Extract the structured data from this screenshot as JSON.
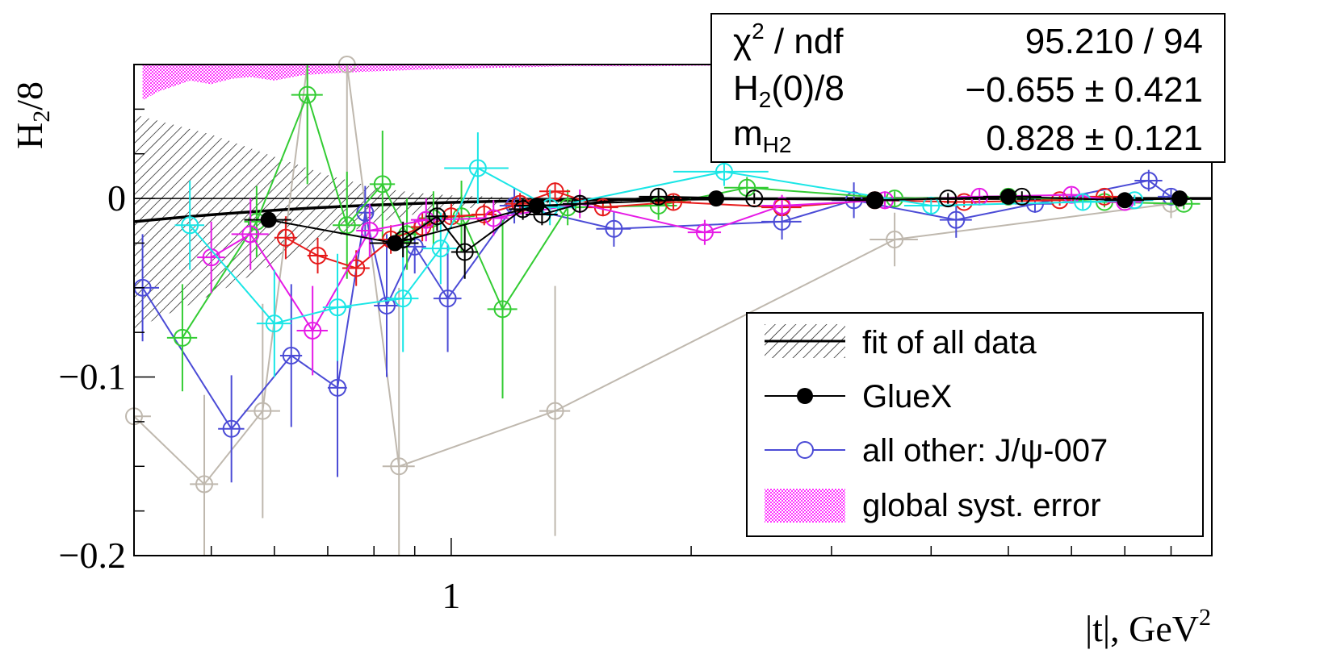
{
  "chart_data": {
    "type": "scatter",
    "x_scale": "log",
    "xlim": [
      0.4,
      9.0
    ],
    "ylim": [
      -0.2,
      0.075
    ],
    "ylabel_main": "H",
    "ylabel_sub": "2",
    "ylabel_rest": "/8",
    "xlabel_main": "|t|, GeV",
    "xlabel_sup": "2",
    "x_ticks": [
      {
        "value": 1,
        "label": "1"
      }
    ],
    "y_ticks": [
      {
        "value": 0,
        "label": "0"
      },
      {
        "value": -0.1,
        "label": "−0.1"
      },
      {
        "value": -0.2,
        "label": "−0.2"
      }
    ],
    "stats": {
      "chi_label": "χ",
      "chi_sup": "2",
      "chi_rest": " / ndf",
      "chi_value": "95.210 / 94",
      "h2_label": "H",
      "h2_sub": "2",
      "h2_rest": "(0)/8",
      "h2_value": "−0.655 ± 0.421",
      "m_label": "m",
      "m_sub": "H2",
      "m_value": "0.828 ± 0.121"
    },
    "legend": {
      "fit": "fit of all data",
      "gluex": "GlueX",
      "other": "all other: J/ψ-007",
      "syst": "global syst. error"
    },
    "colors": {
      "gluex": "#000000",
      "blue": "#4b4bd6",
      "green": "#33cc33",
      "red": "#e61a1a",
      "magenta": "#e61ae6",
      "cyan": "#1ae6e6",
      "gray": "#bfb8ae",
      "black_open": "#000000",
      "syst": "#ff33ff"
    },
    "fit": {
      "h2_0": -0.655,
      "m": 0.828,
      "x": [
        0.4,
        0.5,
        0.6,
        0.7,
        0.8,
        0.9,
        1.0,
        1.2,
        1.5,
        2.0,
        3.0,
        5.0,
        9.0
      ],
      "band_halfwidth": [
        0.06,
        0.045,
        0.03,
        0.018,
        0.01,
        0.006,
        0.004,
        0.002,
        0.001,
        0.0005,
        0.0002,
        0.0001,
        0.0
      ]
    },
    "series": [
      {
        "name": "GlueX",
        "filled": true,
        "color_key": "gluex",
        "x": [
          0.59,
          0.85,
          1.28,
          2.15,
          3.4,
          5.0,
          7.0,
          8.2,
          10.3
        ],
        "y": [
          -0.012,
          -0.025,
          -0.004,
          0.0,
          -0.001,
          0.001,
          -0.001,
          0.0,
          0.0
        ],
        "yerr": [
          0.004,
          0.004,
          0.003,
          0.002,
          0.002,
          0.002,
          0.002,
          0.002,
          0.002
        ],
        "xerr": [
          0.04,
          0.06,
          0.08,
          0.15,
          0.25,
          0.35,
          0.4,
          0.4,
          0.7
        ]
      },
      {
        "color_key": "blue",
        "x": [
          0.41,
          0.53,
          0.63,
          0.72,
          0.78,
          0.83,
          0.9,
          0.99,
          1.2,
          1.6,
          2.6,
          3.2,
          4.3,
          5.4,
          7.5,
          8.0
        ],
        "y": [
          -0.05,
          -0.129,
          -0.088,
          -0.106,
          -0.008,
          -0.06,
          -0.027,
          -0.056,
          -0.004,
          -0.017,
          -0.013,
          -0.001,
          -0.012,
          -0.003,
          0.01,
          0.001
        ],
        "yerr": [
          0.03,
          0.03,
          0.04,
          0.05,
          0.015,
          0.04,
          0.015,
          0.03,
          0.01,
          0.01,
          0.01,
          0.01,
          0.01,
          0.005,
          0.006,
          0.004
        ],
        "xerr": [
          0.02,
          0.02,
          0.02,
          0.02,
          0.02,
          0.03,
          0.03,
          0.04,
          0.05,
          0.08,
          0.15,
          0.2,
          0.2,
          0.3,
          0.3,
          0.3
        ]
      },
      {
        "color_key": "green",
        "x": [
          0.46,
          0.57,
          0.66,
          0.74,
          0.82,
          0.88,
          0.95,
          1.03,
          1.16,
          1.4,
          1.82,
          2.35,
          3.6,
          5.0,
          6.6,
          8.3
        ],
        "y": [
          -0.078,
          -0.013,
          0.058,
          -0.015,
          0.008,
          -0.02,
          -0.011,
          -0.01,
          -0.062,
          -0.005,
          -0.004,
          0.006,
          0.0,
          0.001,
          -0.002,
          -0.003
        ],
        "yerr": [
          0.03,
          0.02,
          0.05,
          0.03,
          0.03,
          0.02,
          0.015,
          0.02,
          0.05,
          0.01,
          0.008,
          0.006,
          0.004,
          0.004,
          0.003,
          0.003
        ],
        "xerr": [
          0.02,
          0.02,
          0.03,
          0.03,
          0.03,
          0.03,
          0.04,
          0.04,
          0.05,
          0.07,
          0.1,
          0.15,
          0.25,
          0.3,
          0.35,
          0.4
        ]
      },
      {
        "color_key": "red",
        "x": [
          0.62,
          0.68,
          0.76,
          0.84,
          0.92,
          1.0,
          1.1,
          1.22,
          1.35,
          1.55,
          1.9,
          2.6,
          3.4,
          4.4,
          5.8,
          6.6
        ],
        "y": [
          -0.022,
          -0.032,
          -0.039,
          -0.023,
          -0.016,
          -0.01,
          -0.009,
          -0.003,
          0.004,
          -0.005,
          -0.002,
          -0.005,
          -0.001,
          -0.002,
          -0.001,
          0.001
        ],
        "yerr": [
          0.012,
          0.01,
          0.01,
          0.008,
          0.008,
          0.007,
          0.006,
          0.006,
          0.005,
          0.005,
          0.004,
          0.004,
          0.003,
          0.003,
          0.003,
          0.003
        ],
        "xerr": [
          0.02,
          0.02,
          0.03,
          0.03,
          0.03,
          0.04,
          0.04,
          0.05,
          0.06,
          0.07,
          0.1,
          0.15,
          0.2,
          0.25,
          0.3,
          0.3
        ]
      },
      {
        "color_key": "magenta",
        "x": [
          0.5,
          0.56,
          0.67,
          0.79,
          0.93,
          1.13,
          1.45,
          2.08,
          2.6,
          3.5,
          4.6,
          6.0,
          7.0
        ],
        "y": [
          -0.033,
          -0.02,
          -0.074,
          -0.018,
          -0.012,
          -0.011,
          -0.003,
          -0.019,
          -0.004,
          -0.001,
          0.001,
          0.002,
          -0.002
        ],
        "yerr": [
          0.02,
          0.02,
          0.025,
          0.015,
          0.012,
          0.01,
          0.008,
          0.007,
          0.006,
          0.005,
          0.004,
          0.004,
          0.003
        ],
        "xerr": [
          0.02,
          0.03,
          0.03,
          0.03,
          0.04,
          0.05,
          0.07,
          0.1,
          0.15,
          0.2,
          0.25,
          0.3,
          0.35
        ]
      },
      {
        "color_key": "cyan",
        "x": [
          0.47,
          0.6,
          0.72,
          0.87,
          0.97,
          1.08,
          1.33,
          2.2,
          4.0,
          6.2,
          7.2
        ],
        "y": [
          -0.015,
          -0.07,
          -0.061,
          -0.056,
          -0.028,
          0.017,
          -0.005,
          0.015,
          -0.004,
          -0.002,
          -0.001
        ],
        "yerr": [
          0.025,
          0.03,
          0.03,
          0.03,
          0.02,
          0.02,
          0.01,
          0.008,
          0.005,
          0.004,
          0.003
        ],
        "xerr": [
          0.02,
          0.03,
          0.03,
          0.04,
          0.05,
          0.1,
          0.1,
          0.3,
          0.3,
          0.35,
          0.4
        ]
      },
      {
        "color_key": "gray",
        "x": [
          0.4,
          0.49,
          0.58,
          0.66,
          0.74,
          0.86,
          1.35,
          3.6,
          8.0
        ],
        "y": [
          -0.122,
          -0.16,
          -0.119,
          0.09,
          0.075,
          -0.15,
          -0.119,
          -0.023,
          -0.003
        ],
        "yerr": [
          0.06,
          0.05,
          0.06,
          0.08,
          0.08,
          0.1,
          0.07,
          0.015,
          0.008
        ],
        "xerr": [
          0.02,
          0.02,
          0.03,
          0.03,
          0.03,
          0.04,
          0.06,
          0.25,
          0.4
        ]
      },
      {
        "color_key": "black_open",
        "x": [
          0.87,
          0.96,
          1.04,
          1.23,
          1.3,
          1.45,
          1.82,
          2.4,
          3.4,
          4.2,
          5.2
        ],
        "y": [
          -0.023,
          -0.01,
          -0.03,
          -0.006,
          -0.009,
          -0.003,
          0.001,
          0.0,
          -0.001,
          0.0,
          0.001
        ],
        "yerr": [
          0.01,
          0.008,
          0.015,
          0.006,
          0.006,
          0.005,
          0.004,
          0.003,
          0.003,
          0.003,
          0.003
        ],
        "xerr": [
          0.03,
          0.03,
          0.04,
          0.05,
          0.06,
          0.07,
          0.1,
          0.15,
          0.2,
          0.25,
          0.3
        ]
      }
    ],
    "syst_band": {
      "x": [
        0.41,
        0.43,
        0.45,
        0.47,
        0.5,
        0.53,
        0.56,
        0.6,
        0.65,
        0.7,
        0.78,
        0.9,
        1.1,
        1.4,
        1.8,
        2.5,
        9.0
      ],
      "bottom": [
        0.055,
        0.06,
        0.063,
        0.066,
        0.064,
        0.067,
        0.068,
        0.066,
        0.069,
        0.07,
        0.071,
        0.072,
        0.073,
        0.074,
        0.074,
        0.075,
        0.075
      ]
    }
  }
}
